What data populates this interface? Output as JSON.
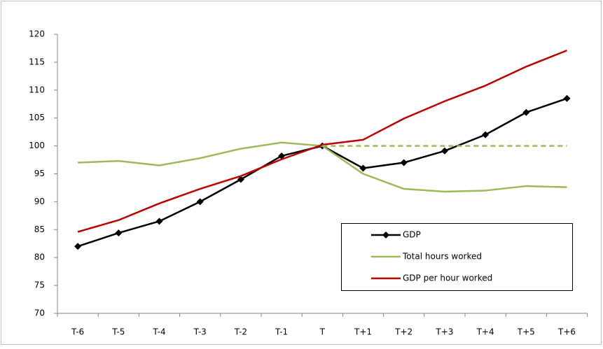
{
  "chart_data": {
    "type": "line",
    "categories": [
      "T-6",
      "T-5",
      "T-4",
      "T-3",
      "T-2",
      "T-1",
      "T",
      "T+1",
      "T+2",
      "T+3",
      "T+4",
      "T+5",
      "T+6"
    ],
    "series": [
      {
        "name": "GDP",
        "color": "#000000",
        "marker": "diamond",
        "values": [
          82,
          84.4,
          86.5,
          90,
          94,
          98.2,
          100,
          96,
          97,
          99.1,
          102,
          106,
          108.5
        ]
      },
      {
        "name": "Total hours worked",
        "color": "#9bbb59",
        "values": [
          97,
          97.3,
          96.5,
          97.8,
          99.5,
          100.6,
          100,
          95,
          92.3,
          91.8,
          92,
          92.8,
          92.6
        ]
      },
      {
        "name": "GDP per hour worked",
        "color": "#c00000",
        "values": [
          84.6,
          86.7,
          89.7,
          92.3,
          94.6,
          97.6,
          100.2,
          101.1,
          104.9,
          108,
          110.8,
          114.2,
          117.1
        ]
      },
      {
        "color": "#9bbb59",
        "dashed": true,
        "values": [
          null,
          null,
          null,
          null,
          null,
          null,
          100,
          100,
          100,
          100,
          100,
          100,
          100
        ]
      }
    ],
    "ylim": [
      70,
      120
    ],
    "yticks": [
      70,
      75,
      80,
      85,
      90,
      95,
      100,
      105,
      110,
      115,
      120
    ],
    "grid": false
  }
}
